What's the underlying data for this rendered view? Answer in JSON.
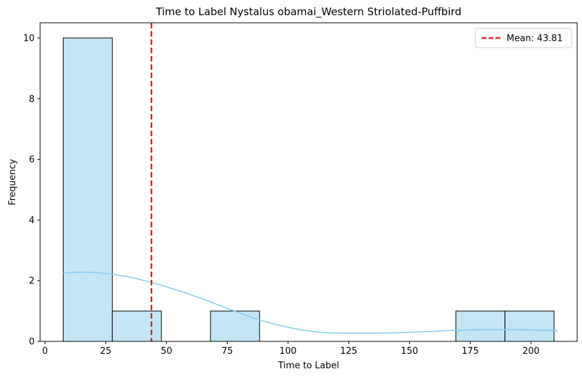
{
  "chart_data": {
    "type": "bar",
    "subtype": "histogram",
    "title": "Time to Label Nystalus obamai_Western Striolated-Puffbird",
    "xlabel": "Time to Label",
    "ylabel": "Frequency",
    "xlim": [
      -2,
      219
    ],
    "ylim": [
      0,
      10.5
    ],
    "x_ticks": [
      0,
      25,
      50,
      75,
      100,
      125,
      150,
      175,
      200
    ],
    "y_ticks": [
      0,
      2,
      4,
      6,
      8,
      10
    ],
    "bins": [
      {
        "start": 7.5,
        "end": 27.7,
        "count": 10
      },
      {
        "start": 27.7,
        "end": 47.9,
        "count": 1
      },
      {
        "start": 47.9,
        "end": 68.1,
        "count": 0
      },
      {
        "start": 68.1,
        "end": 88.3,
        "count": 1
      },
      {
        "start": 88.3,
        "end": 108.5,
        "count": 0
      },
      {
        "start": 108.5,
        "end": 128.7,
        "count": 0
      },
      {
        "start": 128.7,
        "end": 148.9,
        "count": 0
      },
      {
        "start": 148.9,
        "end": 169.1,
        "count": 0
      },
      {
        "start": 169.1,
        "end": 189.3,
        "count": 1
      },
      {
        "start": 189.3,
        "end": 209.5,
        "count": 1
      }
    ],
    "kde": {
      "x": [
        7.5,
        12,
        17,
        22,
        27,
        32,
        37,
        42,
        47,
        52,
        57,
        62,
        67,
        72,
        77,
        82,
        87,
        92,
        97,
        102,
        107,
        112,
        117,
        122,
        127,
        132,
        137,
        142,
        147,
        152,
        157,
        162,
        167,
        172,
        177,
        182,
        187,
        192,
        197,
        202,
        207,
        211
      ],
      "y": [
        2.25,
        2.28,
        2.28,
        2.26,
        2.22,
        2.16,
        2.08,
        1.98,
        1.87,
        1.75,
        1.62,
        1.48,
        1.34,
        1.18,
        1.03,
        0.88,
        0.74,
        0.62,
        0.52,
        0.43,
        0.36,
        0.31,
        0.28,
        0.27,
        0.27,
        0.27,
        0.27,
        0.28,
        0.29,
        0.31,
        0.32,
        0.34,
        0.36,
        0.37,
        0.38,
        0.39,
        0.39,
        0.39,
        0.38,
        0.37,
        0.36,
        0.35
      ]
    },
    "mean": {
      "value": 43.81,
      "label": "Mean: 43.81",
      "color": "#d62728",
      "style": "dashed"
    },
    "bar_fill": "#c3e5f4",
    "bar_edge": "#000000",
    "kde_color": "#87ceeb",
    "grid": false,
    "legend_position": "top-right"
  }
}
